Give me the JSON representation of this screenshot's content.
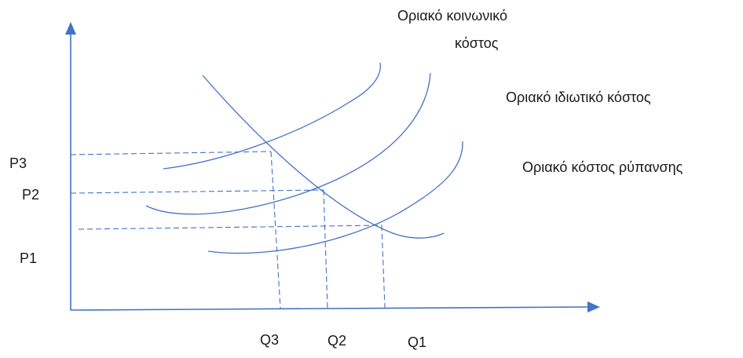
{
  "labels": {
    "social_cost_line1": "Οριακό κοινωνικό",
    "social_cost_line2": "κόστος",
    "private_cost": "Οριακό ιδιωτικό  κόστος",
    "pollution_cost": "Οριακό κόστος ρύπανσης"
  },
  "y_ticks": [
    "P3",
    "P2",
    "P1"
  ],
  "x_ticks": [
    "Q3",
    "Q2",
    "Q1"
  ],
  "colors": {
    "lines": "#4472c4",
    "text": "#1a1a1a"
  }
}
